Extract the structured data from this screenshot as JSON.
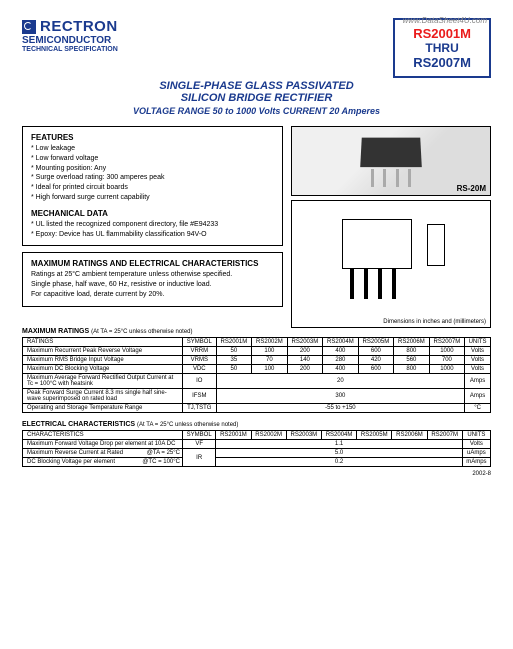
{
  "watermark": "www.DataSheet4U.com",
  "company": "RECTRON",
  "subcompany": "SEMICONDUCTOR",
  "techspec": "TECHNICAL SPECIFICATION",
  "partbox": {
    "top": "RS2001M",
    "mid": "THRU",
    "bot": "RS2007M"
  },
  "title1": "SINGLE-PHASE GLASS PASSIVATED",
  "title2": "SILICON BRIDGE RECTIFIER",
  "title3": "VOLTAGE RANGE  50 to 1000 Volts   CURRENT 20 Amperes",
  "features": {
    "title": "FEATURES",
    "items": [
      "* Low leakage",
      "* Low forward voltage",
      "* Mounting position: Any",
      "* Surge overload rating: 300 amperes peak",
      "* Ideal for printed circuit boards",
      "* High forward surge current capability"
    ]
  },
  "mech": {
    "title": "MECHANICAL DATA",
    "items": [
      "* UL listed the recognized component directory, file #E94233",
      "* Epoxy: Device has UL flammability classification 94V-O"
    ]
  },
  "ratings_box": {
    "title": "MAXIMUM RATINGS AND ELECTRICAL CHARACTERISTICS",
    "lines": [
      "Ratings at 25°C ambient temperature unless otherwise specified.",
      "Single phase, half wave, 60 Hz, resistive or inductive load.",
      "For capacitive load, derate current by 20%."
    ]
  },
  "pkg_label": "RS-20M",
  "dim_caption": "Dimensions in inches and (millimeters)",
  "max_ratings": {
    "header": "MAXIMUM RATINGS",
    "note": "(At TA = 25°C unless otherwise noted)",
    "cols": [
      "RATINGS",
      "SYMBOL",
      "RS2001M",
      "RS2002M",
      "RS2003M",
      "RS2004M",
      "RS2005M",
      "RS2006M",
      "RS2007M",
      "UNITS"
    ],
    "rows": [
      {
        "r": "Maximum Recurrent Peak Reverse Voltage",
        "s": "VRRM",
        "v": [
          "50",
          "100",
          "200",
          "400",
          "600",
          "800",
          "1000"
        ],
        "u": "Volts"
      },
      {
        "r": "Maximum RMS Bridge Input Voltage",
        "s": "VRMS",
        "v": [
          "35",
          "70",
          "140",
          "280",
          "420",
          "560",
          "700"
        ],
        "u": "Volts"
      },
      {
        "r": "Maximum DC Blocking Voltage",
        "s": "VDC",
        "v": [
          "50",
          "100",
          "200",
          "400",
          "600",
          "800",
          "1000"
        ],
        "u": "Volts"
      },
      {
        "r": "Maximum Average Forward Rectified Output Current at Tc = 100°C with heatsink",
        "s": "IO",
        "span": "20",
        "u": "Amps"
      },
      {
        "r": "Peak Forward Surge Current 8.3 ms single half sine-wave superimposed on rated load",
        "s": "IFSM",
        "span": "300",
        "u": "Amps"
      },
      {
        "r": "Operating and Storage Temperature Range",
        "s": "TJ,TSTG",
        "span": "-55 to +150",
        "u": "°C"
      }
    ]
  },
  "elec": {
    "header": "ELECTRICAL CHARACTERISTICS",
    "note": "(At TA = 25°C unless otherwise noted)",
    "cols": [
      "CHARACTERISTICS",
      "SYMBOL",
      "RS2001M",
      "RS2002M",
      "RS2003M",
      "RS2004M",
      "RS2005M",
      "RS2006M",
      "RS2007M",
      "UNITS"
    ],
    "rows": [
      {
        "r": "Maximum Forward Voltage Drop per element at 10A DC",
        "s": "VF",
        "span": "1.1",
        "u": "Volts"
      },
      {
        "r": "Maximum Reverse Current at Rated",
        "sub": "@TA = 25°C",
        "s": "IR",
        "span": "5.0",
        "u": "uAmps"
      },
      {
        "r": "DC Blocking Voltage per element",
        "sub": "@TC = 100°C",
        "s": "",
        "span": "0.2",
        "u": "mAmps"
      }
    ]
  },
  "rev": "2002-8"
}
